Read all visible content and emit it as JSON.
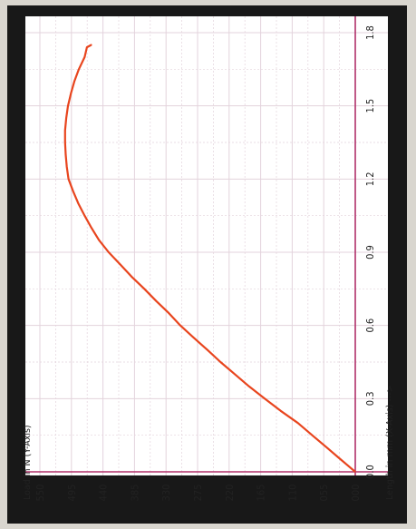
{
  "chart_data": {
    "type": "line",
    "orientation": "rotated-90-clockwise",
    "xlabel": "Length in mm (X-Axis) --->",
    "ylabel": "Load in N (Y-Axis)",
    "x_ticks": [
      "0.0",
      "0.3",
      "0.6",
      "0.9",
      "1.2",
      "1.5",
      "1.8"
    ],
    "y_ticks": [
      "000",
      "055",
      "110",
      "165",
      "220",
      "275",
      "330",
      "385",
      "440",
      "495",
      "550"
    ],
    "xlim": [
      0,
      1.8
    ],
    "ylim": [
      0,
      550
    ],
    "grid": true,
    "colors": {
      "line": "#e8451e",
      "axis": "#b0306a",
      "grid": "#e3d3dc",
      "background": "#ffffff"
    },
    "series": [
      {
        "x": [
          0.0,
          0.03,
          0.06,
          0.1,
          0.15,
          0.2,
          0.25,
          0.3,
          0.35,
          0.4,
          0.45,
          0.5,
          0.55,
          0.6,
          0.65,
          0.7,
          0.75,
          0.8,
          0.85,
          0.9,
          0.95,
          1.0,
          1.05,
          1.1,
          1.15,
          1.2,
          1.25,
          1.3,
          1.35,
          1.4,
          1.45,
          1.5,
          1.55,
          1.6,
          1.65,
          1.7,
          1.74,
          1.75,
          1.75,
          1.75
        ],
        "y": [
          0,
          15,
          30,
          50,
          75,
          100,
          130,
          158,
          185,
          210,
          235,
          258,
          282,
          305,
          325,
          347,
          368,
          390,
          410,
          430,
          447,
          460,
          472,
          483,
          492,
          500,
          503,
          505,
          506,
          506,
          504,
          501,
          496,
          490,
          482,
          472,
          468,
          460,
          460,
          460
        ]
      }
    ]
  }
}
